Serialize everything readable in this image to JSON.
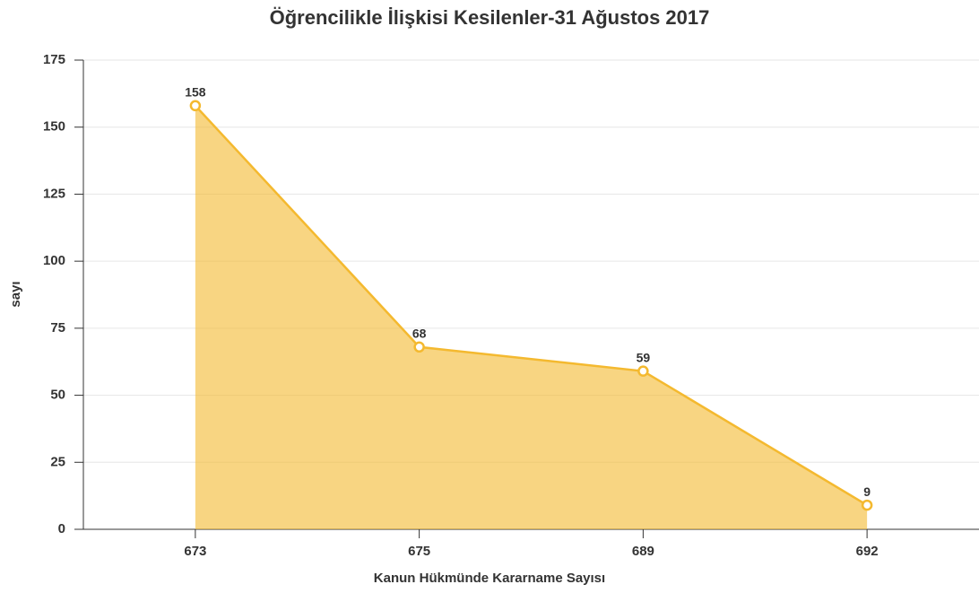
{
  "chart_data": {
    "type": "area",
    "title": "Öğrencilikle İlişkisi Kesilenler-31 Ağustos 2017",
    "x_label": "Kanun Hükmünde Kararname Sayısı",
    "y_label": "sayı",
    "categories": [
      "673",
      "675",
      "689",
      "692"
    ],
    "values": [
      158,
      68,
      59,
      9
    ],
    "color": "#f4b92f",
    "ylim": [
      0,
      175
    ],
    "yticks": [
      0,
      25,
      50,
      75,
      100,
      125,
      150,
      175
    ],
    "grid": true
  }
}
